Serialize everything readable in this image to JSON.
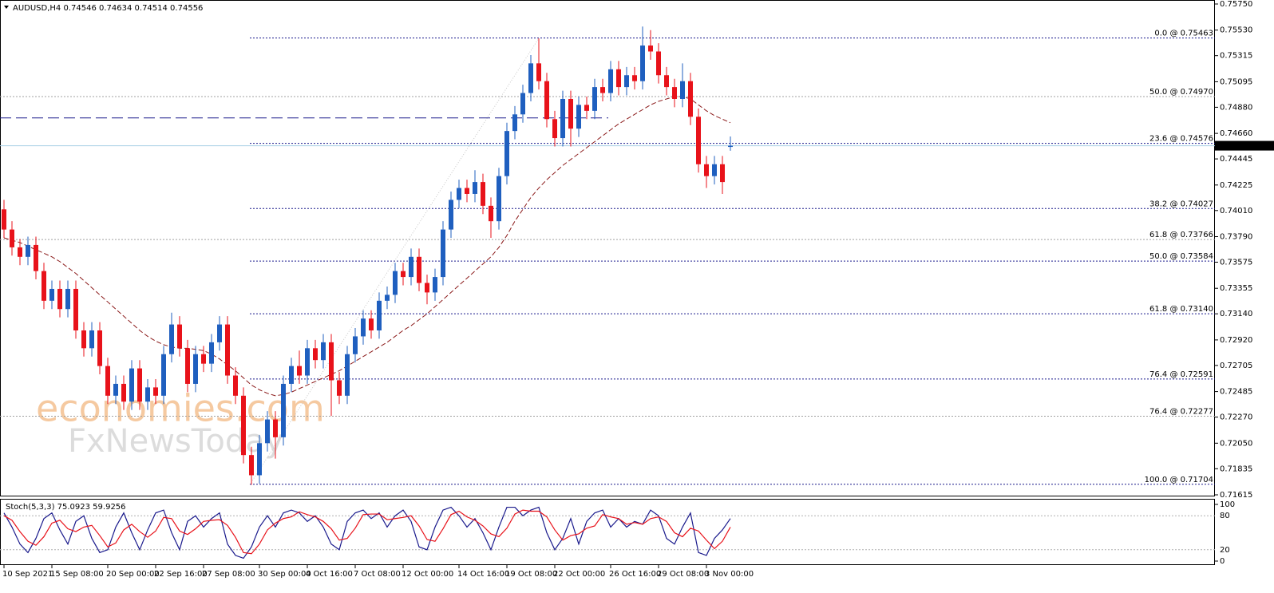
{
  "chart_data": [
    {
      "type": "candlestick",
      "title": "AUDUSD,H4  0.74546 0.74634 0.74514 0.74556",
      "watermark": [
        "economies.com",
        "FxNewsToday"
      ],
      "categories": [
        "10 Sep 2021",
        null,
        null,
        null,
        null,
        null,
        "15 Sep 08:00",
        null,
        null,
        null,
        null,
        null,
        null,
        "20 Sep 00:00",
        null,
        null,
        null,
        null,
        null,
        "22 Sep 16:00",
        null,
        null,
        null,
        null,
        null,
        "27 Sep 08:00",
        null,
        null,
        null,
        null,
        null,
        null,
        "30 Sep 00:00",
        null,
        null,
        null,
        null,
        null,
        "4 Oct 16:00",
        null,
        null,
        null,
        null,
        null,
        "7 Oct 08:00",
        null,
        null,
        null,
        null,
        null,
        "12 Oct 00:00",
        null,
        null,
        null,
        null,
        null,
        null,
        "14 Oct 16:00",
        null,
        null,
        null,
        null,
        null,
        "19 Oct 08:00",
        null,
        null,
        null,
        null,
        null,
        "22 Oct 00:00",
        null,
        null,
        null,
        null,
        null,
        null,
        "26 Oct 16:00",
        null,
        null,
        null,
        null,
        null,
        "29 Oct 08:00",
        null,
        null,
        null,
        null,
        null,
        "3 Nov 00:00",
        null,
        null,
        null
      ],
      "open": [
        0.7402,
        0.7385,
        0.737,
        0.7362,
        0.7372,
        0.735,
        0.7325,
        0.7335,
        0.7318,
        0.7335,
        0.73,
        0.7285,
        0.73,
        0.727,
        0.7245,
        0.7255,
        0.724,
        0.7268,
        0.724,
        0.7252,
        0.7245,
        0.728,
        0.7305,
        0.7285,
        0.7255,
        0.728,
        0.7272,
        0.729,
        0.7305,
        0.7262,
        0.7245,
        0.7195,
        0.7178,
        0.7205,
        0.7225,
        0.721,
        0.7255,
        0.727,
        0.7262,
        0.7285,
        0.7275,
        0.729,
        0.7258,
        0.7245,
        0.728,
        0.7295,
        0.731,
        0.73,
        0.7325,
        0.733,
        0.735,
        0.7345,
        0.7362,
        0.734,
        0.7332,
        0.7345,
        0.7385,
        0.741,
        0.742,
        0.7415,
        0.7425,
        0.7405,
        0.7392,
        0.743,
        0.7468,
        0.7482,
        0.75,
        0.7525,
        0.751,
        0.7478,
        0.7462,
        0.7495,
        0.747,
        0.749,
        0.7485,
        0.7505,
        0.75,
        0.752,
        0.7505,
        0.7515,
        0.751,
        0.754,
        0.7535,
        0.7515,
        0.7505,
        0.7495,
        0.751,
        0.748,
        0.744,
        0.743,
        0.744,
        0.74546
      ],
      "high": [
        0.741,
        0.7392,
        0.7377,
        0.7379,
        0.7379,
        0.7357,
        0.7342,
        0.7342,
        0.7342,
        0.7342,
        0.7307,
        0.7307,
        0.7307,
        0.7277,
        0.7262,
        0.7262,
        0.7275,
        0.7275,
        0.7259,
        0.7259,
        0.7287,
        0.7315,
        0.7312,
        0.7292,
        0.7287,
        0.7287,
        0.7297,
        0.7312,
        0.7312,
        0.7269,
        0.7252,
        0.7202,
        0.7212,
        0.7232,
        0.7232,
        0.7262,
        0.7277,
        0.7283,
        0.7292,
        0.7292,
        0.7297,
        0.7297,
        0.7265,
        0.7287,
        0.7302,
        0.7317,
        0.7317,
        0.7332,
        0.7337,
        0.7357,
        0.7357,
        0.7369,
        0.7369,
        0.7347,
        0.7352,
        0.7392,
        0.7417,
        0.7427,
        0.7427,
        0.7435,
        0.7432,
        0.7412,
        0.7437,
        0.7475,
        0.7489,
        0.7507,
        0.7532,
        0.7546,
        0.7517,
        0.7485,
        0.7502,
        0.7502,
        0.7497,
        0.7497,
        0.7512,
        0.7512,
        0.7527,
        0.7527,
        0.7522,
        0.7522,
        0.7556,
        0.7553,
        0.7542,
        0.7522,
        0.7512,
        0.7525,
        0.7517,
        0.7487,
        0.7447,
        0.7447,
        0.7447,
        0.74634
      ],
      "low": [
        0.7378,
        0.7363,
        0.7355,
        0.7355,
        0.7343,
        0.7318,
        0.7318,
        0.7311,
        0.7311,
        0.7293,
        0.7278,
        0.7278,
        0.7263,
        0.7238,
        0.7238,
        0.7233,
        0.7233,
        0.7233,
        0.7233,
        0.7238,
        0.7238,
        0.7273,
        0.7278,
        0.7248,
        0.7248,
        0.7265,
        0.7265,
        0.7283,
        0.7255,
        0.7238,
        0.7188,
        0.717,
        0.7171,
        0.7198,
        0.7192,
        0.7203,
        0.7248,
        0.7255,
        0.7255,
        0.7268,
        0.7268,
        0.7228,
        0.7238,
        0.7238,
        0.7273,
        0.7288,
        0.7293,
        0.7293,
        0.7318,
        0.7323,
        0.7338,
        0.7338,
        0.7333,
        0.7322,
        0.7325,
        0.7338,
        0.7378,
        0.7403,
        0.7408,
        0.7408,
        0.7398,
        0.7378,
        0.7385,
        0.7423,
        0.7461,
        0.7475,
        0.7493,
        0.7503,
        0.7471,
        0.7455,
        0.7455,
        0.7455,
        0.7463,
        0.7478,
        0.7478,
        0.7493,
        0.7493,
        0.7498,
        0.7498,
        0.7503,
        0.7503,
        0.7528,
        0.7508,
        0.7498,
        0.7488,
        0.7488,
        0.7473,
        0.7433,
        0.742,
        0.7423,
        0.7415,
        0.74514
      ],
      "close": [
        0.7385,
        0.737,
        0.7362,
        0.7372,
        0.735,
        0.7325,
        0.7335,
        0.7318,
        0.7335,
        0.73,
        0.7285,
        0.73,
        0.727,
        0.7245,
        0.7255,
        0.724,
        0.7268,
        0.724,
        0.7252,
        0.7245,
        0.728,
        0.7305,
        0.7285,
        0.7255,
        0.728,
        0.7272,
        0.729,
        0.7305,
        0.7262,
        0.7245,
        0.7195,
        0.7178,
        0.7205,
        0.7225,
        0.721,
        0.7255,
        0.727,
        0.7262,
        0.7285,
        0.7275,
        0.729,
        0.7258,
        0.7245,
        0.728,
        0.7295,
        0.731,
        0.73,
        0.7325,
        0.733,
        0.735,
        0.7345,
        0.7362,
        0.734,
        0.7332,
        0.7345,
        0.7385,
        0.741,
        0.742,
        0.7415,
        0.7425,
        0.7405,
        0.7392,
        0.743,
        0.7468,
        0.7482,
        0.75,
        0.7525,
        0.751,
        0.7478,
        0.7462,
        0.7495,
        0.747,
        0.749,
        0.7485,
        0.7505,
        0.75,
        0.752,
        0.7505,
        0.7515,
        0.751,
        0.754,
        0.7535,
        0.7515,
        0.7505,
        0.7495,
        0.751,
        0.748,
        0.744,
        0.743,
        0.744,
        0.7425,
        0.74556
      ],
      "up_color": "#1f5fbf",
      "down_color": "#e8121a",
      "moving_average": {
        "color": "#8b1a1a",
        "values": [
          0.7378,
          0.7376,
          0.7374,
          0.7371,
          0.7368,
          0.7365,
          0.7362,
          0.7358,
          0.7353,
          0.7348,
          0.7342,
          0.7336,
          0.733,
          0.7324,
          0.7318,
          0.7312,
          0.7306,
          0.73,
          0.7295,
          0.7291,
          0.7288,
          0.7286,
          0.7285,
          0.7285,
          0.7284,
          0.7283,
          0.728,
          0.7276,
          0.7271,
          0.7266,
          0.726,
          0.7254,
          0.725,
          0.7247,
          0.7245,
          0.7246,
          0.7248,
          0.7251,
          0.7254,
          0.7257,
          0.726,
          0.7263,
          0.7266,
          0.727,
          0.7274,
          0.7278,
          0.7282,
          0.7286,
          0.729,
          0.7295,
          0.73,
          0.7304,
          0.7309,
          0.7314,
          0.732,
          0.7326,
          0.7332,
          0.7338,
          0.7344,
          0.735,
          0.7356,
          0.7362,
          0.737,
          0.738,
          0.7392,
          0.7402,
          0.7412,
          0.742,
          0.7427,
          0.7433,
          0.7439,
          0.7444,
          0.7449,
          0.7454,
          0.7459,
          0.7464,
          0.7469,
          0.7474,
          0.7478,
          0.7482,
          0.7486,
          0.749,
          0.7493,
          0.7495,
          0.7497,
          0.7497,
          0.7495,
          0.749,
          0.7485,
          0.7481,
          0.7478,
          0.7475
        ]
      },
      "levels": {
        "color": "#1a1a8c",
        "items": [
          {
            "value": 0.75463,
            "label": "0.0 @ 0.75463"
          },
          {
            "value": 0.74576,
            "label": "23.6 @ 0.74576"
          },
          {
            "value": 0.74027,
            "label": "38.2 @ 0.74027"
          },
          {
            "value": 0.73584,
            "label": "50.0 @ 0.73584"
          },
          {
            "value": 0.7314,
            "label": "61.8 @ 0.73140"
          },
          {
            "value": 0.72591,
            "label": "76.4 @ 0.72591"
          },
          {
            "value": 0.71704,
            "label": "100.0 @ 0.71704"
          }
        ]
      },
      "secondary_levels": {
        "color": "#a0a0a0",
        "items": [
          {
            "value": 0.7497,
            "label": "50.0 @ 0.74970"
          },
          {
            "value": 0.73766,
            "label": "61.8 @ 0.73766"
          },
          {
            "value": 0.72277,
            "label": "76.4 @ 0.72277"
          }
        ]
      },
      "horizontal_line": {
        "value": 0.7479,
        "color": "#1a1a8c"
      },
      "current_price": 0.74556,
      "ylim": [
        0.71615,
        0.7575
      ],
      "yticks": [
        {
          "value": 0.7575,
          "label": "0.75750"
        },
        {
          "value": 0.7553,
          "label": "0.75530"
        },
        0.75315,
        0.75095,
        {
          "value": 0.7488,
          "label": "0.74880"
        },
        {
          "value": 0.7466,
          "label": "0.74660"
        },
        0.74445,
        0.74225,
        {
          "value": 0.7401,
          "label": "0.74010"
        },
        {
          "value": 0.7379,
          "label": "0.73790"
        },
        0.73575,
        0.73355,
        {
          "value": 0.7314,
          "label": "0.73140"
        },
        {
          "value": 0.7292,
          "label": "0.72920"
        },
        0.72705,
        0.72485,
        {
          "value": 0.7227,
          "label": "0.72270"
        },
        {
          "value": 0.7205,
          "label": "0.72050"
        },
        0.71835,
        0.71615
      ]
    },
    {
      "type": "line",
      "title": "Stoch(5,3,3) 75.0923 59.9256",
      "series": [
        {
          "color": "#1a1a8c",
          "values": [
            85,
            60,
            30,
            15,
            40,
            75,
            85,
            55,
            30,
            70,
            80,
            40,
            15,
            20,
            60,
            85,
            50,
            20,
            55,
            85,
            90,
            50,
            20,
            70,
            80,
            60,
            75,
            85,
            30,
            10,
            5,
            25,
            60,
            80,
            60,
            85,
            90,
            85,
            70,
            80,
            60,
            30,
            20,
            70,
            85,
            90,
            75,
            85,
            60,
            80,
            90,
            70,
            25,
            20,
            60,
            90,
            95,
            80,
            60,
            75,
            50,
            20,
            60,
            95,
            95,
            80,
            90,
            95,
            50,
            20,
            40,
            75,
            30,
            70,
            85,
            90,
            60,
            75,
            60,
            70,
            65,
            90,
            80,
            40,
            30,
            60,
            85,
            15,
            10,
            40,
            55,
            75.0923
          ]
        },
        {
          "color": "#e8121a",
          "values": [
            80,
            72,
            52,
            35,
            28,
            43,
            67,
            72,
            57,
            52,
            60,
            63,
            45,
            25,
            32,
            55,
            65,
            52,
            42,
            53,
            77,
            75,
            53,
            47,
            57,
            70,
            72,
            73,
            63,
            42,
            15,
            13,
            30,
            55,
            67,
            75,
            78,
            87,
            82,
            78,
            70,
            57,
            37,
            40,
            58,
            82,
            83,
            83,
            73,
            75,
            77,
            80,
            62,
            38,
            35,
            57,
            82,
            88,
            78,
            72,
            62,
            48,
            43,
            58,
            83,
            90,
            88,
            88,
            78,
            55,
            37,
            45,
            48,
            58,
            62,
            82,
            78,
            75,
            65,
            68,
            65,
            75,
            78,
            70,
            50,
            43,
            58,
            53,
            37,
            22,
            35,
            59.9256
          ]
        }
      ],
      "ylim": [
        0,
        100
      ],
      "yticks": [
        0,
        20,
        80,
        100
      ]
    }
  ]
}
